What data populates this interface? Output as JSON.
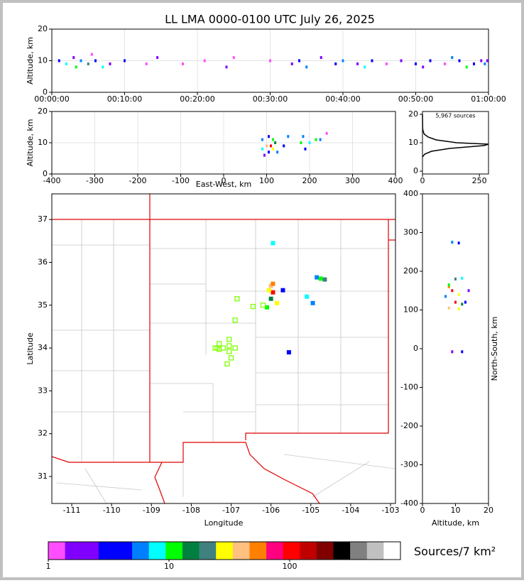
{
  "chart_data": [
    {
      "type": "scatter",
      "title": "LL LMA 0000-0100 UTC July 26, 2025",
      "ylabel": "Altitude, km",
      "grid": true,
      "xlim": [
        0,
        3600
      ],
      "ylim": [
        0,
        20
      ],
      "xticks": [
        {
          "value": 0,
          "label": "00:00:00"
        },
        {
          "value": 600,
          "label": "00:10:00"
        },
        {
          "value": 1200,
          "label": "00:20:00"
        },
        {
          "value": 1800,
          "label": "00:30:00"
        },
        {
          "value": 2400,
          "label": "00:40:00"
        },
        {
          "value": 3000,
          "label": "00:50:00"
        },
        {
          "value": 3600,
          "label": "01:00:00"
        }
      ],
      "yticks": [
        0,
        10,
        20
      ],
      "points": {
        "x": [
          60,
          120,
          180,
          200,
          240,
          300,
          330,
          360,
          420,
          480,
          600,
          780,
          870,
          1080,
          1260,
          1440,
          1500,
          1800,
          1980,
          2040,
          2100,
          2220,
          2340,
          2400,
          2520,
          2580,
          2640,
          2760,
          2880,
          3000,
          3060,
          3120,
          3240,
          3300,
          3360,
          3420,
          3480,
          3540,
          3570,
          3590
        ],
        "y": [
          10,
          9,
          11,
          8,
          10,
          9,
          12,
          10,
          8,
          9,
          10,
          9,
          11,
          9,
          10,
          8,
          11,
          10,
          9,
          10,
          8,
          11,
          9,
          10,
          9,
          8,
          10,
          9,
          10,
          9,
          8,
          10,
          9,
          11,
          10,
          8,
          9,
          10,
          9,
          10
        ],
        "density": [
          3,
          8,
          2,
          12,
          5,
          20,
          1,
          4,
          9,
          2,
          3,
          1,
          2,
          1,
          1,
          2,
          1,
          1,
          2,
          3,
          6,
          2,
          3,
          5,
          2,
          8,
          3,
          1,
          2,
          4,
          2,
          3,
          1,
          6,
          4,
          12,
          3,
          2,
          5,
          2
        ]
      }
    },
    {
      "type": "scatter",
      "xlabel": "East-West, km",
      "ylabel": "Altitude, km",
      "grid": true,
      "xlim": [
        -400,
        400
      ],
      "ylim": [
        0,
        20
      ],
      "xticks": [
        -400,
        -300,
        -200,
        -100,
        0,
        100,
        200,
        300,
        400
      ],
      "yticks": [
        0,
        10,
        20
      ],
      "points": {
        "x": [
          90,
          90,
          95,
          100,
          105,
          110,
          115,
          120,
          125,
          105,
          115,
          140,
          150,
          180,
          185,
          190,
          200,
          215,
          225,
          240
        ],
        "y": [
          8,
          11,
          6,
          9,
          12,
          9,
          8,
          10,
          7,
          7,
          11,
          9,
          12,
          10,
          12,
          8,
          10,
          11,
          11,
          13
        ],
        "density": [
          8,
          5,
          2,
          40,
          3,
          90,
          30,
          15,
          6,
          4,
          10,
          3,
          5,
          12,
          6,
          4,
          8,
          10,
          5,
          1
        ]
      }
    },
    {
      "type": "line",
      "annotation": "5,967 sources",
      "orientation": "horizontal",
      "color": "#000000",
      "xlim": [
        0,
        290
      ],
      "ylim": [
        -1,
        21
      ],
      "xticks": [
        0,
        250
      ],
      "yticks": [
        0,
        10,
        20
      ],
      "x": [
        5,
        6,
        7,
        8,
        9,
        9.5,
        10,
        11,
        12,
        13,
        14,
        15,
        20
      ],
      "values": [
        0,
        10,
        40,
        120,
        270,
        290,
        150,
        60,
        25,
        8,
        3,
        1,
        0
      ]
    },
    {
      "type": "map",
      "xlabel": "Longitude",
      "ylabel": "Latitude",
      "xlim": [
        -111.5,
        -102.875
      ],
      "ylim": [
        30.37,
        37.6
      ],
      "xticks": [
        -111,
        -110,
        -109,
        -108,
        -107,
        -106,
        -105,
        -104,
        -103
      ],
      "yticks": [
        31,
        32,
        33,
        34,
        35,
        36,
        37
      ],
      "points": {
        "x": [
          -105.95,
          -106.0,
          -105.95,
          -106.0,
          -105.85,
          -106.1,
          -105.7,
          -105.1,
          -104.95,
          -104.85,
          -104.65,
          -105.55,
          -105.95,
          -106.05,
          -104.75
        ],
        "y": [
          36.45,
          35.45,
          35.3,
          35.15,
          35.05,
          34.95,
          35.35,
          35.2,
          35.05,
          35.65,
          35.6,
          33.9,
          35.5,
          35.35,
          35.62
        ],
        "density": [
          8,
          40,
          120,
          15,
          30,
          12,
          4,
          9,
          5,
          6,
          20,
          3,
          60,
          25,
          10
        ]
      },
      "stations": {
        "color": "#7fff00",
        "x": [
          -106.85,
          -106.45,
          -106.9,
          -107.05,
          -107.3,
          -107.35,
          -107.2,
          -107.05,
          -106.9,
          -107.05,
          -107.0,
          -107.1,
          -107.3,
          -107.4,
          -106.2
        ],
        "y": [
          35.15,
          34.97,
          34.65,
          34.2,
          34.1,
          34.0,
          34.0,
          34.05,
          34.0,
          33.92,
          33.77,
          33.63,
          33.97,
          34.0,
          35.0
        ]
      }
    },
    {
      "type": "scatter",
      "xlabel": "Altitude, km",
      "ylabel": "North-South, km",
      "xlim": [
        0,
        20
      ],
      "ylim": [
        -400,
        400
      ],
      "xticks": [
        0,
        10,
        20
      ],
      "yticks": [
        -400,
        -300,
        -200,
        -100,
        0,
        100,
        200,
        300,
        400
      ],
      "points": {
        "x": [
          9,
          11,
          10,
          12,
          8,
          9,
          11,
          7,
          10,
          12,
          8,
          11,
          13,
          9,
          12,
          8,
          14
        ],
        "y": [
          275,
          273,
          180,
          182,
          160,
          150,
          140,
          135,
          120,
          115,
          105,
          103,
          120,
          -8,
          -8,
          165,
          150
        ],
        "density": [
          5,
          3,
          20,
          8,
          60,
          90,
          30,
          6,
          120,
          15,
          40,
          25,
          4,
          2,
          3,
          10,
          2
        ]
      }
    },
    {
      "type": "colorbar",
      "title": "Sources/7 km²",
      "log": true,
      "clim": [
        1,
        828
      ],
      "xticks": [
        1,
        10,
        100
      ],
      "colors": [
        "#ff4dff",
        "#8000ff",
        "#8000ff",
        "#0000ff",
        "#0000ff",
        "#0080ff",
        "#00ffff",
        "#00ff00",
        "#008040",
        "#408080",
        "#ffff00",
        "#ffc080",
        "#ff8000",
        "#ff0080",
        "#ff0000",
        "#c00000",
        "#800000",
        "#000000",
        "#808080",
        "#c0c0c0",
        "#ffffff"
      ]
    }
  ]
}
